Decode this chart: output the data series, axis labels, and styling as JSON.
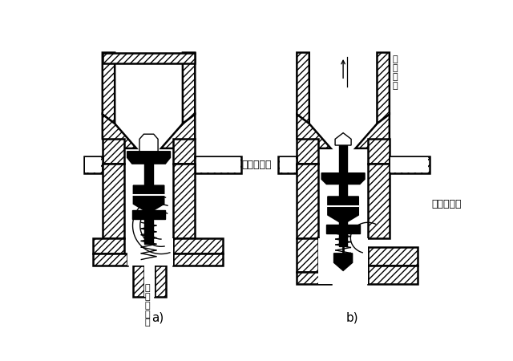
{
  "bg": "#ffffff",
  "lc": "#000000",
  "hatch": "////",
  "lw_wall": 1.8,
  "lw_thin": 1.0,
  "lw_med": 1.3,
  "label_a": "a)",
  "label_b": "b)",
  "text_engine_a": "来自发动机",
  "text_engine_b": "来自发动机",
  "text_radiator": "至\n散\n热\n器",
  "text_small": "至\n小\n循\n环\n管",
  "fs_label": 11,
  "fs_text": 9,
  "fs_small": 8
}
